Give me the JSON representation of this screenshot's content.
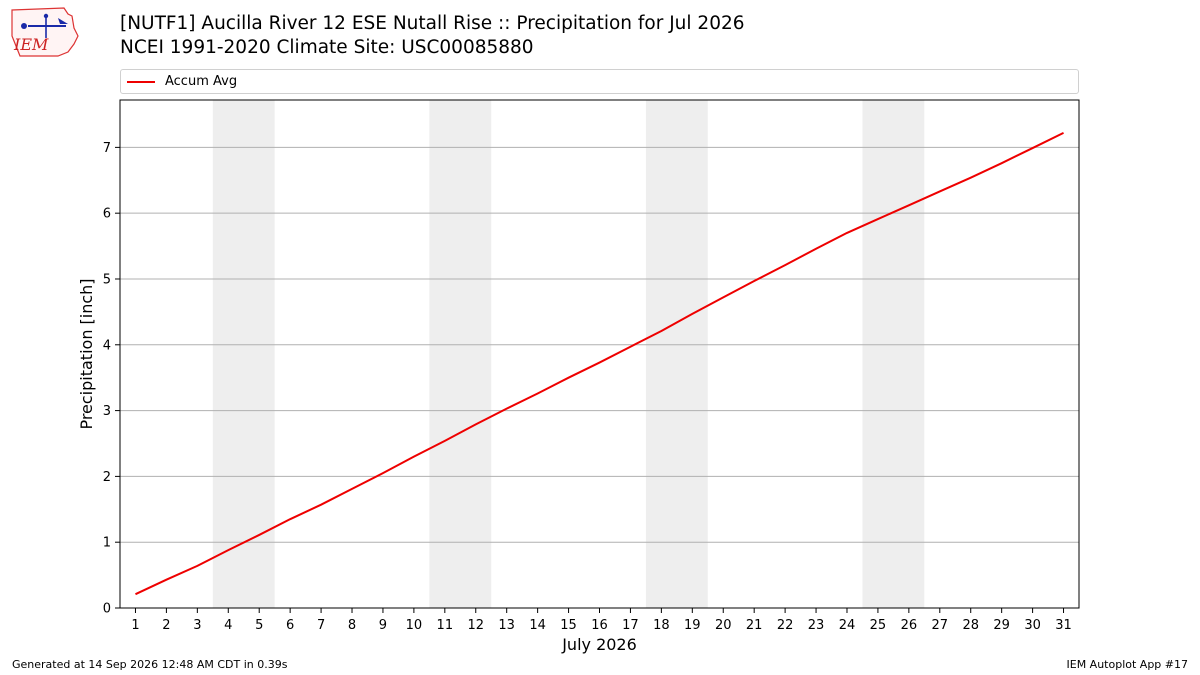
{
  "header": {
    "logo_text": "IEM",
    "title_line1": "[NUTF1] Aucilla River 12 ESE Nutall Rise :: Precipitation for Jul 2026",
    "title_line2": "NCEI 1991-2020 Climate Site: USC00085880"
  },
  "legend": {
    "label": "Accum Avg"
  },
  "footer": {
    "left": "Generated at 14 Sep 2026 12:48 AM CDT in 0.39s",
    "right": "IEM Autoplot App #17"
  },
  "colors": {
    "series": "#ee0000",
    "weekend_shade": "#eeeeee",
    "grid": "#b0b0b0"
  },
  "chart_data": {
    "type": "line",
    "title": "[NUTF1] Aucilla River 12 ESE Nutall Rise :: Precipitation for Jul 2026",
    "subtitle": "NCEI 1991-2020 Climate Site: USC00085880",
    "xlabel": "July 2026",
    "ylabel": "Precipitation [inch]",
    "xlim": [
      0.5,
      31.5
    ],
    "ylim": [
      0,
      7.72
    ],
    "grid": "horizontal",
    "legend": "top",
    "x_ticks": [
      1,
      2,
      3,
      4,
      5,
      6,
      7,
      8,
      9,
      10,
      11,
      12,
      13,
      14,
      15,
      16,
      17,
      18,
      19,
      20,
      21,
      22,
      23,
      24,
      25,
      26,
      27,
      28,
      29,
      30,
      31
    ],
    "y_ticks": [
      0,
      1,
      2,
      3,
      4,
      5,
      6,
      7
    ],
    "shaded_spans": [
      [
        3.5,
        5.5
      ],
      [
        10.5,
        12.5
      ],
      [
        17.5,
        19.5
      ],
      [
        24.5,
        26.5
      ]
    ],
    "series": [
      {
        "name": "Accum Avg",
        "x": [
          1,
          2,
          3,
          4,
          5,
          6,
          7,
          8,
          9,
          10,
          11,
          12,
          13,
          14,
          15,
          16,
          17,
          18,
          19,
          20,
          21,
          22,
          23,
          24,
          25,
          26,
          27,
          28,
          29,
          30,
          31
        ],
        "values": [
          0.21,
          0.43,
          0.64,
          0.88,
          1.11,
          1.35,
          1.57,
          1.81,
          2.05,
          2.3,
          2.54,
          2.79,
          3.03,
          3.26,
          3.5,
          3.73,
          3.97,
          4.21,
          4.47,
          4.72,
          4.97,
          5.21,
          5.46,
          5.7,
          5.91,
          6.12,
          6.33,
          6.54,
          6.76,
          6.99,
          7.22
        ]
      }
    ]
  }
}
